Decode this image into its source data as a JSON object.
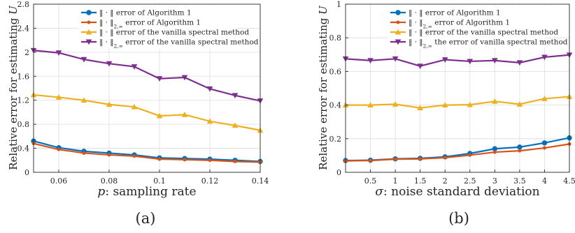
{
  "chart_data": [
    {
      "type": "line",
      "caption": "(a)",
      "xlabel": "p: sampling rate",
      "ylabel": "Relative error for estimating U",
      "xlim": [
        0.05,
        0.14
      ],
      "ylim": [
        0,
        2.8
      ],
      "xticks": [
        "0.06",
        "0.08",
        "0.1",
        "0.12",
        "0.14"
      ],
      "xtick_values": [
        0.06,
        0.08,
        0.1,
        0.12,
        0.14
      ],
      "yticks": [
        "0",
        "0.4",
        "0.8",
        "1.2",
        "1.6",
        "2",
        "2.4",
        "2.8"
      ],
      "ytick_values": [
        0,
        0.4,
        0.8,
        1.2,
        1.6,
        2.0,
        2.4,
        2.8
      ],
      "grid": true,
      "legend_position": "top",
      "x": [
        0.05,
        0.06,
        0.07,
        0.08,
        0.09,
        0.1,
        0.11,
        0.12,
        0.13,
        0.14
      ],
      "series": [
        {
          "name": "‖ · ‖ error of Algorithm 1",
          "color": "#0072BD",
          "marker": "circle",
          "values": [
            0.52,
            0.41,
            0.35,
            0.32,
            0.29,
            0.24,
            0.23,
            0.22,
            0.2,
            0.18
          ]
        },
        {
          "name": "‖ · ‖2,∞ error of Algorithm 1",
          "color": "#D95319",
          "marker": "dot",
          "values": [
            0.48,
            0.38,
            0.32,
            0.29,
            0.27,
            0.22,
            0.21,
            0.2,
            0.18,
            0.17
          ]
        },
        {
          "name": "‖ · ‖ error of the vanilla spectral method",
          "color": "#EDB120",
          "marker": "triangle-up",
          "values": [
            1.29,
            1.25,
            1.2,
            1.13,
            1.09,
            0.94,
            0.96,
            0.85,
            0.78,
            0.7
          ]
        },
        {
          "name": "‖ · ‖2,∞ error of the vanilla spectral method",
          "color": "#7E2F8E",
          "marker": "triangle-down",
          "values": [
            2.03,
            1.99,
            1.88,
            1.81,
            1.76,
            1.56,
            1.58,
            1.39,
            1.28,
            1.19
          ]
        }
      ]
    },
    {
      "type": "line",
      "caption": "(b)",
      "xlabel": "σ: noise standard deviation",
      "ylabel": "Relative error for estimating U",
      "xlim": [
        0,
        4.5
      ],
      "ylim": [
        0,
        1
      ],
      "xticks": [
        "0.5",
        "1",
        "1.5",
        "2",
        "2.5",
        "3",
        "3.5",
        "4",
        "4.5"
      ],
      "xtick_values": [
        0.5,
        1,
        1.5,
        2,
        2.5,
        3,
        3.5,
        4,
        4.5
      ],
      "yticks": [
        "0",
        "0.2",
        "0.4",
        "0.6",
        "0.8",
        "1"
      ],
      "ytick_values": [
        0,
        0.2,
        0.4,
        0.6,
        0.8,
        1
      ],
      "grid": true,
      "legend_position": "top",
      "x": [
        0,
        0.5,
        1,
        1.5,
        2,
        2.5,
        3,
        3.5,
        4,
        4.5
      ],
      "series": [
        {
          "name": "‖ · ‖ error of Algorithm 1",
          "color": "#0072BD",
          "marker": "circle",
          "values": [
            0.07,
            0.072,
            0.08,
            0.083,
            0.092,
            0.112,
            0.14,
            0.15,
            0.175,
            0.205
          ]
        },
        {
          "name": "‖ · ‖2,∞ error of Algorithm 1",
          "color": "#D95319",
          "marker": "dot",
          "values": [
            0.068,
            0.07,
            0.078,
            0.08,
            0.087,
            0.102,
            0.12,
            0.128,
            0.145,
            0.168
          ]
        },
        {
          "name": "‖ · ‖ error of the vanilla spectral method",
          "color": "#EDB120",
          "marker": "triangle-up",
          "values": [
            0.4,
            0.4,
            0.405,
            0.383,
            0.4,
            0.402,
            0.422,
            0.405,
            0.438,
            0.45
          ]
        },
        {
          "name": "‖ · ‖2,∞ the error of vanilla spectral method",
          "color": "#7E2F8E",
          "marker": "triangle-down",
          "values": [
            0.675,
            0.665,
            0.675,
            0.632,
            0.67,
            0.66,
            0.665,
            0.652,
            0.685,
            0.698
          ]
        }
      ]
    }
  ]
}
